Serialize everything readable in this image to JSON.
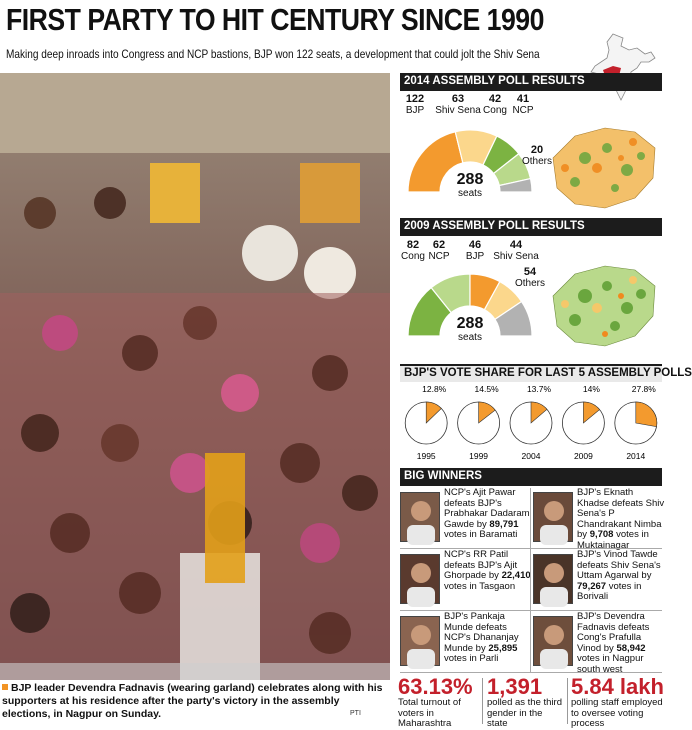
{
  "headline": "FIRST PARTY TO HIT CENTURY SINCE 1990",
  "subhead": "Making deep inroads into Congress and NCP bastions, BJP won 122 seats, a development that could jolt the Shiv Sena",
  "photo_caption": "BJP leader Devendra Fadnavis (wearing garland) celebrates along with his supporters at his residence after the party's victory in the assembly elections, in Nagpur on Sunday.",
  "photo_credit": "PTI",
  "colors": {
    "bjp": "#f39a2e",
    "shiv_sena": "#fbd78c",
    "congress": "#7cb342",
    "ncp": "#b9d98b",
    "others": "#b2b2b2",
    "accent": "#c3202b"
  },
  "chart_data": [
    {
      "type": "pie",
      "title": "2014 ASSEMBLY POLL RESULTS",
      "center_value": "288",
      "center_unit": "seats",
      "slices": [
        {
          "label": "BJP",
          "value": 122
        },
        {
          "label": "Shiv Sena",
          "value": 63
        },
        {
          "label": "Cong",
          "value": 42
        },
        {
          "label": "NCP",
          "value": 41
        },
        {
          "label": "Others",
          "value": 20
        }
      ]
    },
    {
      "type": "pie",
      "title": "2009 ASSEMBLY POLL RESULTS",
      "center_value": "288",
      "center_unit": "seats",
      "slices": [
        {
          "label": "Cong",
          "value": 82
        },
        {
          "label": "NCP",
          "value": 62
        },
        {
          "label": "BJP",
          "value": 46
        },
        {
          "label": "Shiv Sena",
          "value": 44
        },
        {
          "label": "Others",
          "value": 54
        }
      ]
    },
    {
      "type": "pie",
      "title": "BJP'S VOTE SHARE FOR LAST 5 ASSEMBLY POLLS",
      "categories": [
        "1995",
        "1999",
        "2004",
        "2009",
        "2014"
      ],
      "values": [
        12.8,
        14.5,
        13.7,
        14,
        27.8
      ],
      "value_labels": [
        "12.8%",
        "14.5%",
        "13.7%",
        "14%",
        "27.8%"
      ]
    }
  ],
  "big_winners": {
    "title": "BIG WINNERS",
    "items": [
      {
        "pre": "NCP's Ajit Pawar defeats BJP's Prabhakar Dadaram Gawde by ",
        "votes": "89,791",
        "post": " votes in Baramati"
      },
      {
        "pre": "BJP's Eknath Khadse defeats Shiv Sena's P Chandrakant Nimba by ",
        "votes": "9,708",
        "post": " votes in Muktainagar"
      },
      {
        "pre": "NCP's RR Patil defeats BJP's Ajit Ghorpade by ",
        "votes": "22,410",
        "post": " votes in Tasgaon"
      },
      {
        "pre": "BJP's Vinod Tawde defeats Shiv Sena's Uttam Agarwal by ",
        "votes": "79,267",
        "post": " votes in Borivali"
      },
      {
        "pre": "BJP's Pankaja Munde defeats NCP's Dhananjay Munde by ",
        "votes": "25,895",
        "post": " votes in Parli"
      },
      {
        "pre": "BJP's Devendra Fadnavis defeats Cong's Prafulla Vinod by ",
        "votes": "58,942",
        "post": " votes in Nagpur south west"
      }
    ]
  },
  "stats": [
    {
      "value": "63.13%",
      "text": "Total turnout of voters in Maharashtra"
    },
    {
      "value": "1,391",
      "text": "polled as the third gender in the state"
    },
    {
      "value": "5.84 lakh",
      "text": "polling staff employed to oversee voting process"
    }
  ]
}
